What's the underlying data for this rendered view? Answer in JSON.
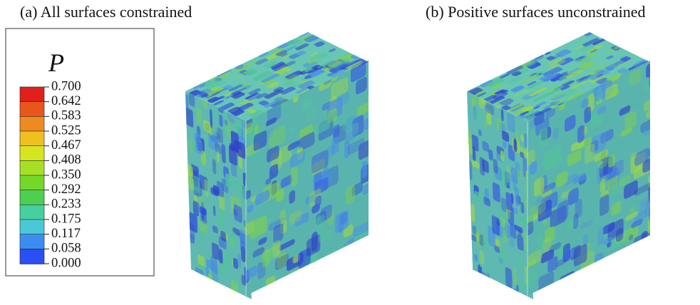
{
  "panels": [
    {
      "caption": "(a)  All surfaces constrained"
    },
    {
      "caption": "(b) Positive surfaces unconstrained"
    }
  ],
  "legend": {
    "title": "P",
    "labels": [
      "0.700",
      "0.642",
      "0.583",
      "0.525",
      "0.467",
      "0.408",
      "0.350",
      "0.292",
      "0.233",
      "0.175",
      "0.117",
      "0.058",
      "0.000"
    ],
    "colors": [
      "#e0201b",
      "#e8561c",
      "#ee8a1f",
      "#f0c020",
      "#d6e61e",
      "#a6e024",
      "#74d82a",
      "#4ecf52",
      "#46d0a0",
      "#4ac8d8",
      "#3a8ef0",
      "#2a4ff2",
      "#2218e8"
    ]
  }
}
